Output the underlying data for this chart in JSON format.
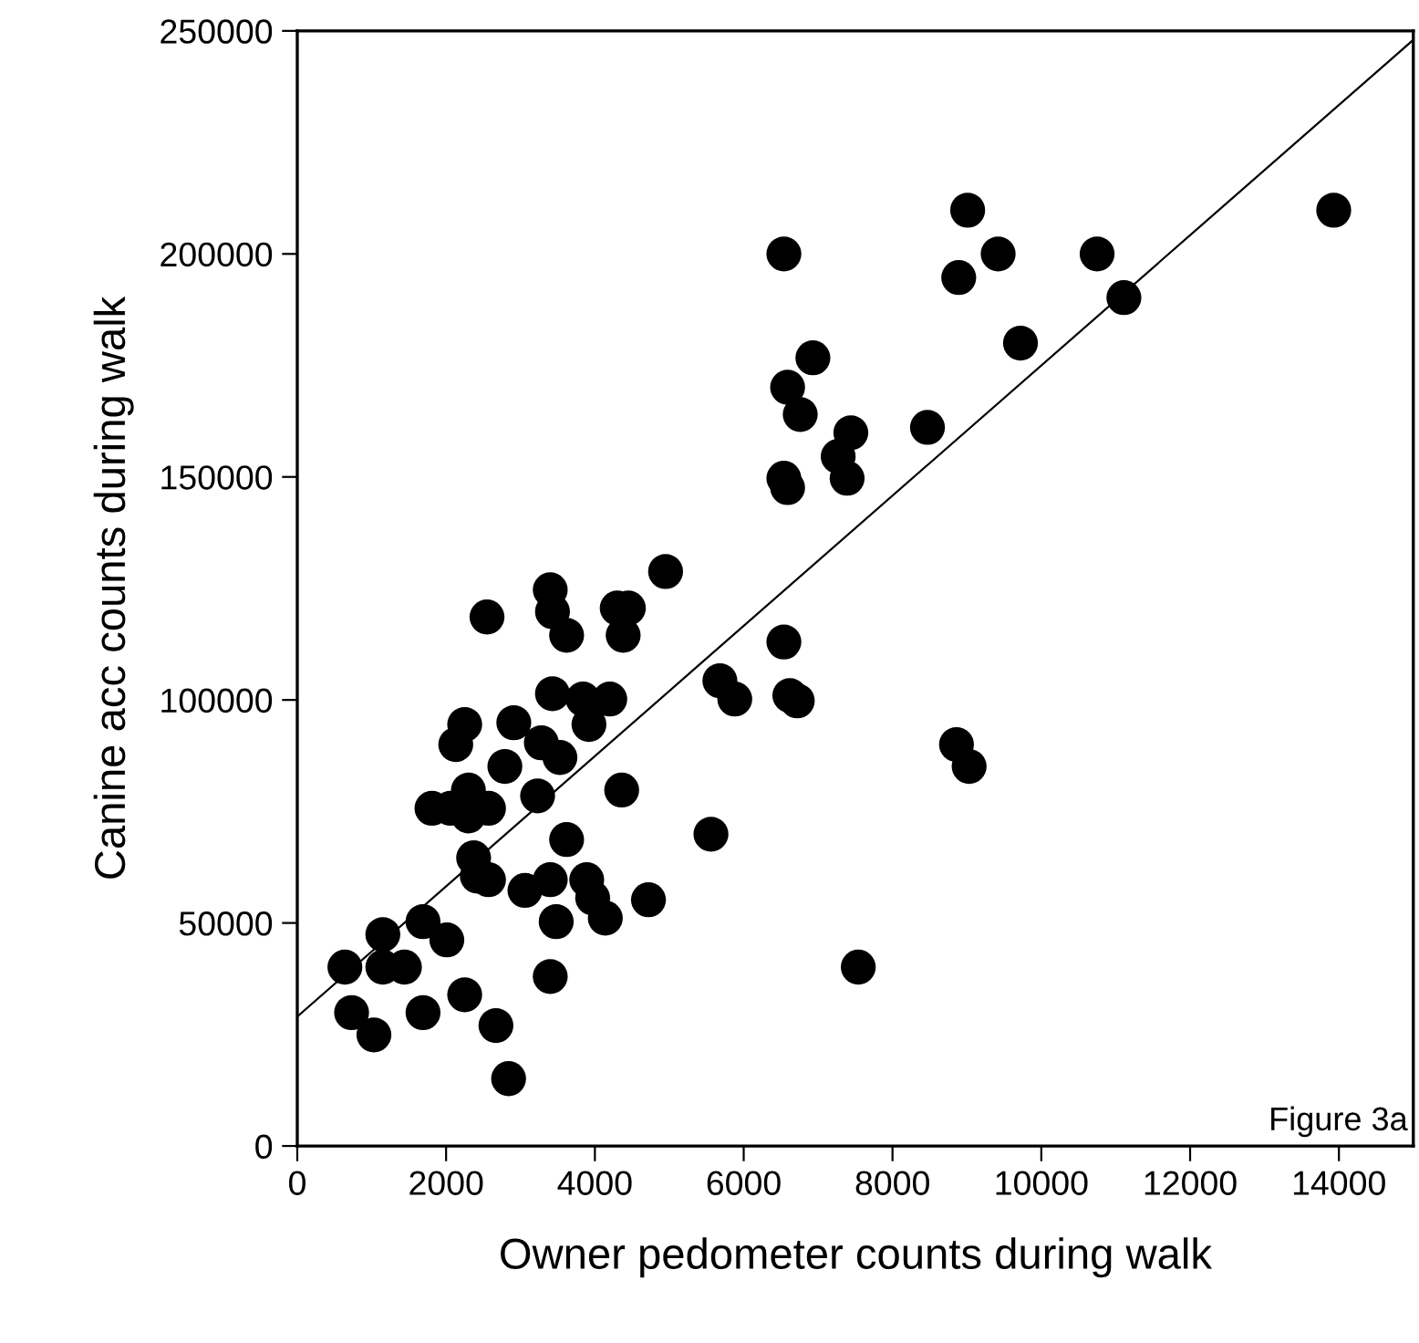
{
  "chart_data": {
    "type": "scatter",
    "xlabel": "Owner pedometer counts during walk",
    "ylabel": "Canine acc counts during walk",
    "annotations": [
      "Figure 3a"
    ],
    "xlim": [
      0,
      15000
    ],
    "xticks": [
      0,
      2000,
      4000,
      6000,
      8000,
      10000,
      12000,
      14000
    ],
    "ylim": [
      0,
      250000
    ],
    "yticks": [
      0,
      50000,
      100000,
      150000,
      200000,
      250000
    ],
    "grid": false,
    "legend": false,
    "marker": "circle",
    "series": [
      {
        "color": "#000000",
        "x": [
          4950,
          2550,
          3400,
          3430,
          3620,
          4300,
          4450,
          4380,
          5680,
          5880,
          3430,
          3840,
          4200,
          3920,
          2250,
          2130,
          2910,
          3280,
          3530,
          2790,
          4360,
          3230,
          5560,
          3620,
          1810,
          2060,
          2300,
          2300,
          2570,
          2370,
          2420,
          2570,
          3060,
          3400,
          3480,
          3890,
          3970,
          4140,
          4720,
          3400,
          1690,
          2010,
          1150,
          640,
          1150,
          1440,
          730,
          1030,
          1690,
          2250,
          2670,
          2840,
          9010,
          13930,
          6540,
          9420,
          10750,
          8890,
          11110,
          9720,
          6930,
          6590,
          6760,
          7440,
          7270,
          7390,
          6540,
          6590,
          8470,
          6540,
          6620,
          6720,
          8860,
          9030,
          7540
        ],
        "values": [
          128800,
          118600,
          124700,
          119800,
          114500,
          120600,
          120600,
          114500,
          104300,
          100200,
          101400,
          100200,
          100200,
          94500,
          94500,
          90000,
          94900,
          90400,
          87100,
          85100,
          79800,
          78500,
          69900,
          68700,
          75700,
          75700,
          79800,
          74000,
          75700,
          64600,
          60500,
          59700,
          57300,
          59700,
          50300,
          59700,
          55600,
          51100,
          55200,
          38000,
          50300,
          46200,
          47400,
          40100,
          40100,
          40100,
          29900,
          24900,
          29900,
          33900,
          27000,
          15100,
          209800,
          209800,
          200000,
          200000,
          200000,
          194700,
          190200,
          180000,
          176700,
          170100,
          164000,
          159900,
          154600,
          149700,
          149700,
          147600,
          161100,
          113000,
          101000,
          99800,
          90000,
          85100,
          40100
        ]
      },
      {
        "type": "line",
        "color": "#000000",
        "marker": "none",
        "line_style": "solid",
        "x": [
          0,
          15000
        ],
        "values": [
          29000,
          248000
        ]
      }
    ]
  }
}
